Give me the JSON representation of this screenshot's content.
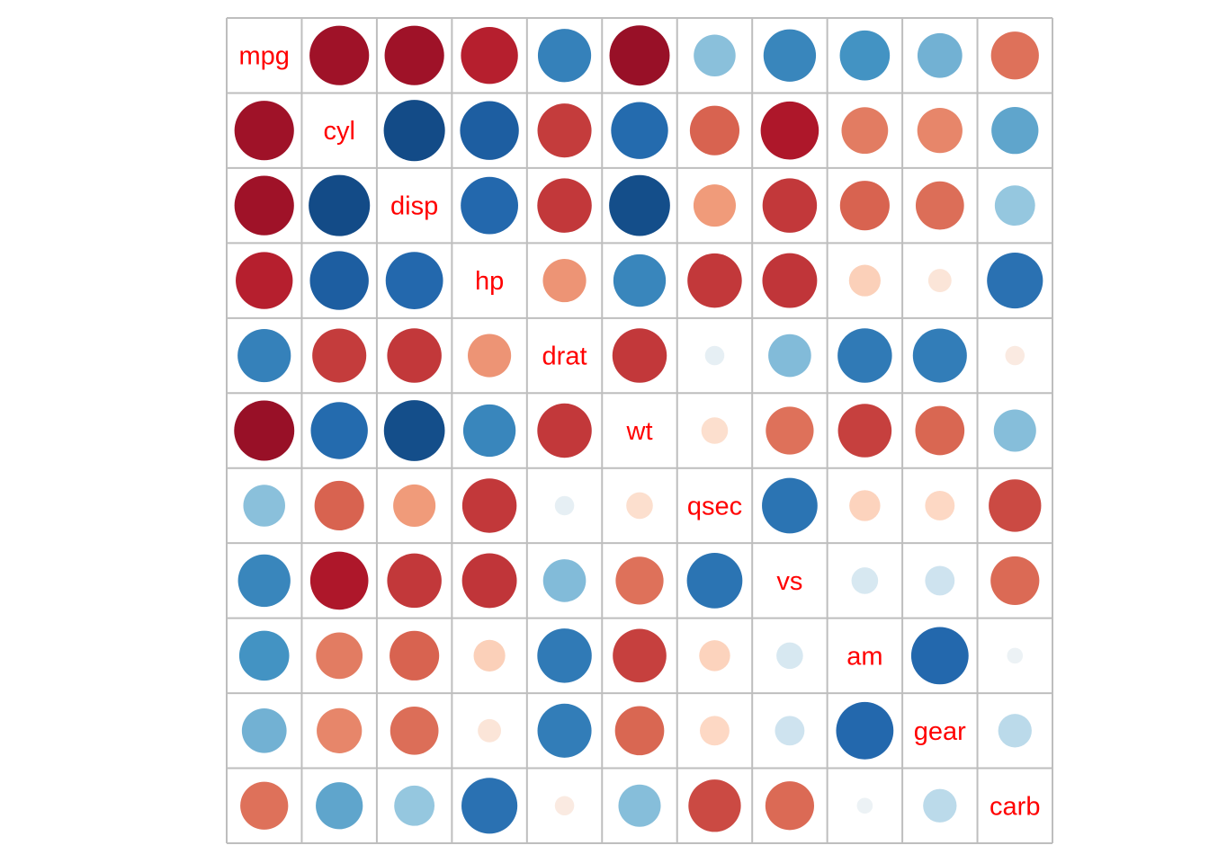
{
  "chart_data": {
    "type": "heatmap",
    "subtype": "correlation-circle-matrix",
    "variables": [
      "mpg",
      "cyl",
      "disp",
      "hp",
      "drat",
      "wt",
      "qsec",
      "vs",
      "am",
      "gear",
      "carb"
    ],
    "matrix": [
      [
        1.0,
        -0.85,
        -0.85,
        -0.78,
        0.68,
        -0.87,
        0.42,
        0.66,
        0.6,
        0.48,
        -0.55
      ],
      [
        -0.85,
        1.0,
        0.9,
        0.83,
        -0.7,
        0.78,
        -0.59,
        -0.81,
        -0.52,
        -0.49,
        0.53
      ],
      [
        -0.85,
        0.9,
        1.0,
        0.79,
        -0.71,
        0.89,
        -0.43,
        -0.71,
        -0.59,
        -0.56,
        0.39
      ],
      [
        -0.78,
        0.83,
        0.79,
        1.0,
        -0.45,
        0.66,
        -0.71,
        -0.72,
        -0.24,
        -0.13,
        0.75
      ],
      [
        0.68,
        -0.7,
        -0.71,
        -0.45,
        1.0,
        -0.71,
        0.09,
        0.44,
        0.71,
        0.7,
        -0.09
      ],
      [
        -0.87,
        0.78,
        0.89,
        0.66,
        -0.71,
        1.0,
        -0.17,
        -0.55,
        -0.69,
        -0.58,
        0.43
      ],
      [
        0.42,
        -0.59,
        -0.43,
        -0.71,
        0.09,
        -0.17,
        1.0,
        0.74,
        -0.23,
        -0.21,
        -0.66
      ],
      [
        0.66,
        -0.81,
        -0.71,
        -0.72,
        0.44,
        -0.55,
        0.74,
        1.0,
        0.17,
        0.21,
        -0.57
      ],
      [
        0.6,
        -0.52,
        -0.59,
        -0.24,
        0.71,
        -0.69,
        -0.23,
        0.17,
        1.0,
        0.79,
        0.06
      ],
      [
        0.48,
        -0.49,
        -0.56,
        -0.13,
        0.7,
        -0.58,
        -0.21,
        0.21,
        0.79,
        1.0,
        0.27
      ],
      [
        -0.55,
        0.53,
        0.39,
        0.75,
        -0.09,
        0.43,
        -0.66,
        -0.57,
        0.06,
        0.27,
        1.0
      ]
    ],
    "scale": [
      -1,
      1
    ],
    "color_scale": {
      "negative_strong": "#67001F",
      "neutral": "#F7F7F7",
      "positive_strong": "#053061"
    },
    "diagonal_label_color": "#FF0000",
    "grid_color": "#BEBEBE"
  }
}
